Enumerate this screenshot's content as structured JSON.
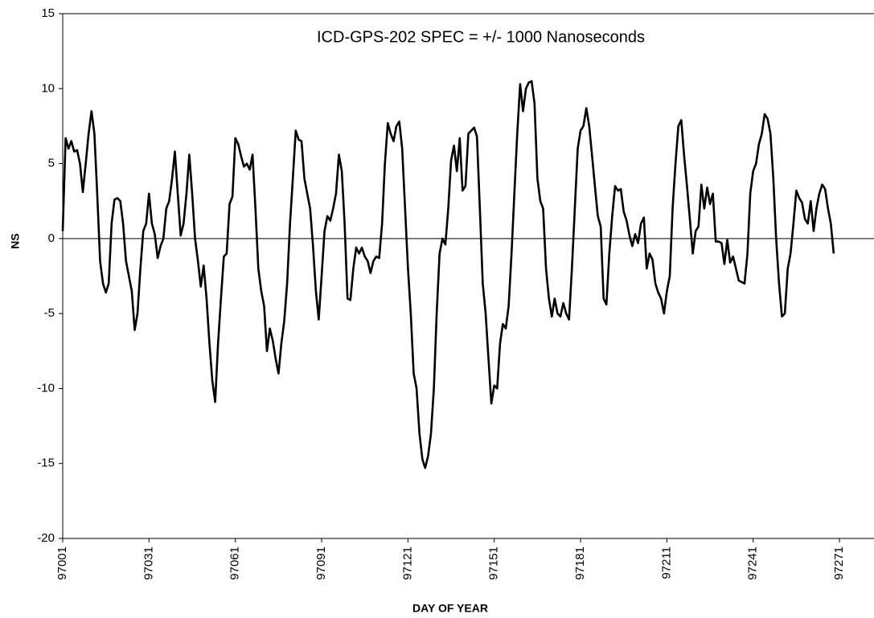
{
  "chart_data": {
    "type": "line",
    "title": "ICD-GPS-202 SPEC = +/- 1000 Nanoseconds",
    "x_label": "DAY OF YEAR",
    "y_label": "NS",
    "color": "#000000",
    "xlim": [
      97001,
      97283
    ],
    "ylim": [
      -20,
      15
    ],
    "xticks": [
      97001,
      97031,
      97061,
      97091,
      97121,
      97151,
      97181,
      97211,
      97241,
      97271
    ],
    "yticks": [
      -20,
      -15,
      -10,
      -5,
      0,
      5,
      10,
      15
    ],
    "x": [
      97001,
      97002,
      97003,
      97004,
      97005,
      97006,
      97007,
      97008,
      97009,
      97010,
      97011,
      97012,
      97013,
      97014,
      97015,
      97016,
      97017,
      97018,
      97019,
      97020,
      97021,
      97022,
      97023,
      97024,
      97025,
      97026,
      97027,
      97028,
      97029,
      97030,
      97031,
      97032,
      97033,
      97034,
      97035,
      97036,
      97037,
      97038,
      97039,
      97040,
      97041,
      97042,
      97043,
      97044,
      97045,
      97046,
      97047,
      97048,
      97049,
      97050,
      97051,
      97052,
      97053,
      97054,
      97055,
      97056,
      97057,
      97058,
      97059,
      97060,
      97061,
      97062,
      97063,
      97064,
      97065,
      97066,
      97067,
      97068,
      97069,
      97070,
      97071,
      97072,
      97073,
      97074,
      97075,
      97076,
      97077,
      97078,
      97079,
      97080,
      97081,
      97082,
      97083,
      97084,
      97085,
      97086,
      97087,
      97088,
      97089,
      97090,
      97091,
      97092,
      97093,
      97094,
      97095,
      97096,
      97097,
      97098,
      97099,
      97100,
      97101,
      97102,
      97103,
      97104,
      97105,
      97106,
      97107,
      97108,
      97109,
      97110,
      97111,
      97112,
      97113,
      97114,
      97115,
      97116,
      97117,
      97118,
      97119,
      97120,
      97121,
      97122,
      97123,
      97124,
      97125,
      97126,
      97127,
      97128,
      97129,
      97130,
      97131,
      97132,
      97133,
      97134,
      97135,
      97136,
      97137,
      97138,
      97139,
      97140,
      97141,
      97142,
      97143,
      97144,
      97145,
      97146,
      97147,
      97148,
      97149,
      97150,
      97151,
      97152,
      97153,
      97154,
      97155,
      97156,
      97157,
      97158,
      97159,
      97160,
      97161,
      97162,
      97163,
      97164,
      97165,
      97166,
      97167,
      97168,
      97169,
      97170,
      97171,
      97172,
      97173,
      97174,
      97175,
      97176,
      97177,
      97178,
      97179,
      97180,
      97181,
      97182,
      97183,
      97184,
      97185,
      97186,
      97187,
      97188,
      97189,
      97190,
      97191,
      97192,
      97193,
      97194,
      97195,
      97196,
      97197,
      97198,
      97199,
      97200,
      97201,
      97202,
      97203,
      97204,
      97205,
      97206,
      97207,
      97208,
      97209,
      97210,
      97211,
      97212,
      97213,
      97214,
      97215,
      97216,
      97217,
      97218,
      97219,
      97220,
      97221,
      97222,
      97223,
      97224,
      97225,
      97226,
      97227,
      97228,
      97229,
      97230,
      97231,
      97232,
      97233,
      97234,
      97235,
      97236,
      97237,
      97238,
      97239,
      97240,
      97241,
      97242,
      97243,
      97244,
      97245,
      97246,
      97247,
      97248,
      97249,
      97250,
      97251,
      97252,
      97253,
      97254,
      97255,
      97256,
      97257,
      97258,
      97259,
      97260,
      97261,
      97262,
      97263,
      97264,
      97265,
      97266,
      97267,
      97268,
      97269
    ],
    "values": [
      0.5,
      6.7,
      6,
      6.5,
      5.8,
      5.9,
      5,
      3.1,
      5,
      7,
      8.5,
      7,
      3,
      -1.5,
      -3,
      -3.6,
      -3,
      1,
      2.6,
      2.7,
      2.5,
      1,
      -1.5,
      -2.5,
      -3.5,
      -6.1,
      -5,
      -2,
      0.5,
      1,
      3,
      1,
      0.3,
      -1.3,
      -0.5,
      0,
      2,
      2.5,
      4,
      5.8,
      3,
      0.2,
      1,
      3,
      5.6,
      3,
      0,
      -1.5,
      -3.2,
      -1.8,
      -4,
      -7,
      -9.5,
      -10.9,
      -7,
      -4,
      -1.2,
      -1,
      2.3,
      2.8,
      6.7,
      6.3,
      5.5,
      4.8,
      5,
      4.6,
      5.6,
      2,
      -2,
      -3.5,
      -4.5,
      -7.5,
      -6,
      -6.8,
      -8,
      -9,
      -7,
      -5.5,
      -3,
      1,
      4,
      7.2,
      6.6,
      6.5,
      4,
      3,
      2,
      -0.5,
      -3.5,
      -5.4,
      -2.5,
      0.5,
      1.5,
      1.2,
      2,
      3,
      5.6,
      4.5,
      1,
      -4,
      -4.1,
      -2,
      -0.6,
      -1,
      -0.6,
      -1.2,
      -1.5,
      -2.3,
      -1.5,
      -1.2,
      -1.3,
      1,
      5,
      7.7,
      7,
      6.5,
      7.5,
      7.8,
      6,
      2,
      -2,
      -5,
      -9,
      -10,
      -13,
      -14.7,
      -15.3,
      -14.5,
      -13,
      -10,
      -5,
      -1,
      0,
      -0.4,
      2,
      5.2,
      6.2,
      4.5,
      6.7,
      3.2,
      3.5,
      7,
      7.2,
      7.4,
      6.8,
      2,
      -3,
      -5,
      -8,
      -11,
      -9.8,
      -10,
      -7,
      -5.7,
      -6,
      -4.5,
      -1,
      3,
      7,
      10.3,
      8.5,
      10,
      10.4,
      10.5,
      9,
      4,
      2.5,
      2,
      -2,
      -4,
      -5.2,
      -4,
      -5,
      -5.2,
      -4.3,
      -5,
      -5.4,
      -2,
      2,
      6,
      7.2,
      7.5,
      8.7,
      7.5,
      5.5,
      3.5,
      1.5,
      0.8,
      -4,
      -4.4,
      -1,
      1.5,
      3.5,
      3.2,
      3.3,
      1.8,
      1.2,
      0.2,
      -0.5,
      0.3,
      -0.3,
      1,
      1.4,
      -2,
      -1,
      -1.4,
      -3,
      -3.6,
      -4,
      -5,
      -3.5,
      -2.5,
      2,
      5,
      7.5,
      7.9,
      5.5,
      3.5,
      1.3,
      -1,
      0.5,
      0.8,
      3.6,
      2,
      3.4,
      2.3,
      3,
      -0.2,
      -0.2,
      -0.3,
      -1.7,
      -0.1,
      -1.6,
      -1.2,
      -2,
      -2.8,
      -2.9,
      -3,
      -1,
      3,
      4.5,
      5,
      6.3,
      7,
      8.3,
      8,
      7,
      4,
      0,
      -3,
      -5.2,
      -5,
      -2,
      -1,
      1,
      3.2,
      2.7,
      2.4,
      1.3,
      1,
      2.5,
      0.5,
      2,
      3,
      3.6,
      3.3,
      2,
      1,
      -1
    ]
  }
}
